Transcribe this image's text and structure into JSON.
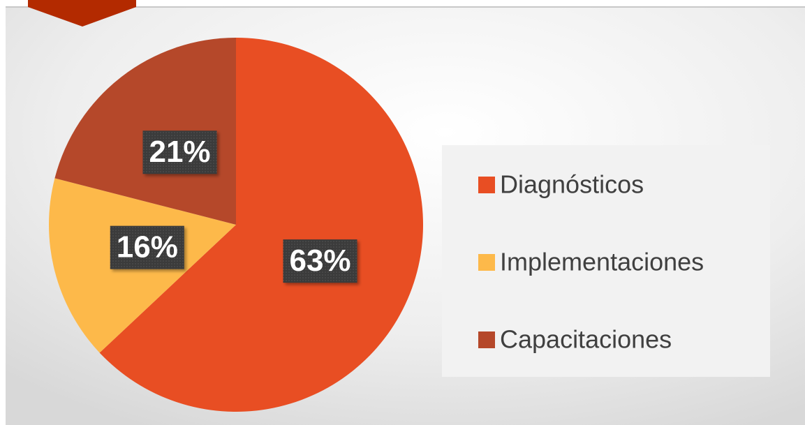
{
  "chart_data": {
    "type": "pie",
    "categories": [
      "Diagnósticos",
      "Implementaciones",
      "Capacitaciones"
    ],
    "values": [
      63,
      16,
      21
    ],
    "value_labels": [
      "63%",
      "16%",
      "21%"
    ],
    "colors": [
      "#e84e23",
      "#fdb94a",
      "#b5482a"
    ]
  }
}
